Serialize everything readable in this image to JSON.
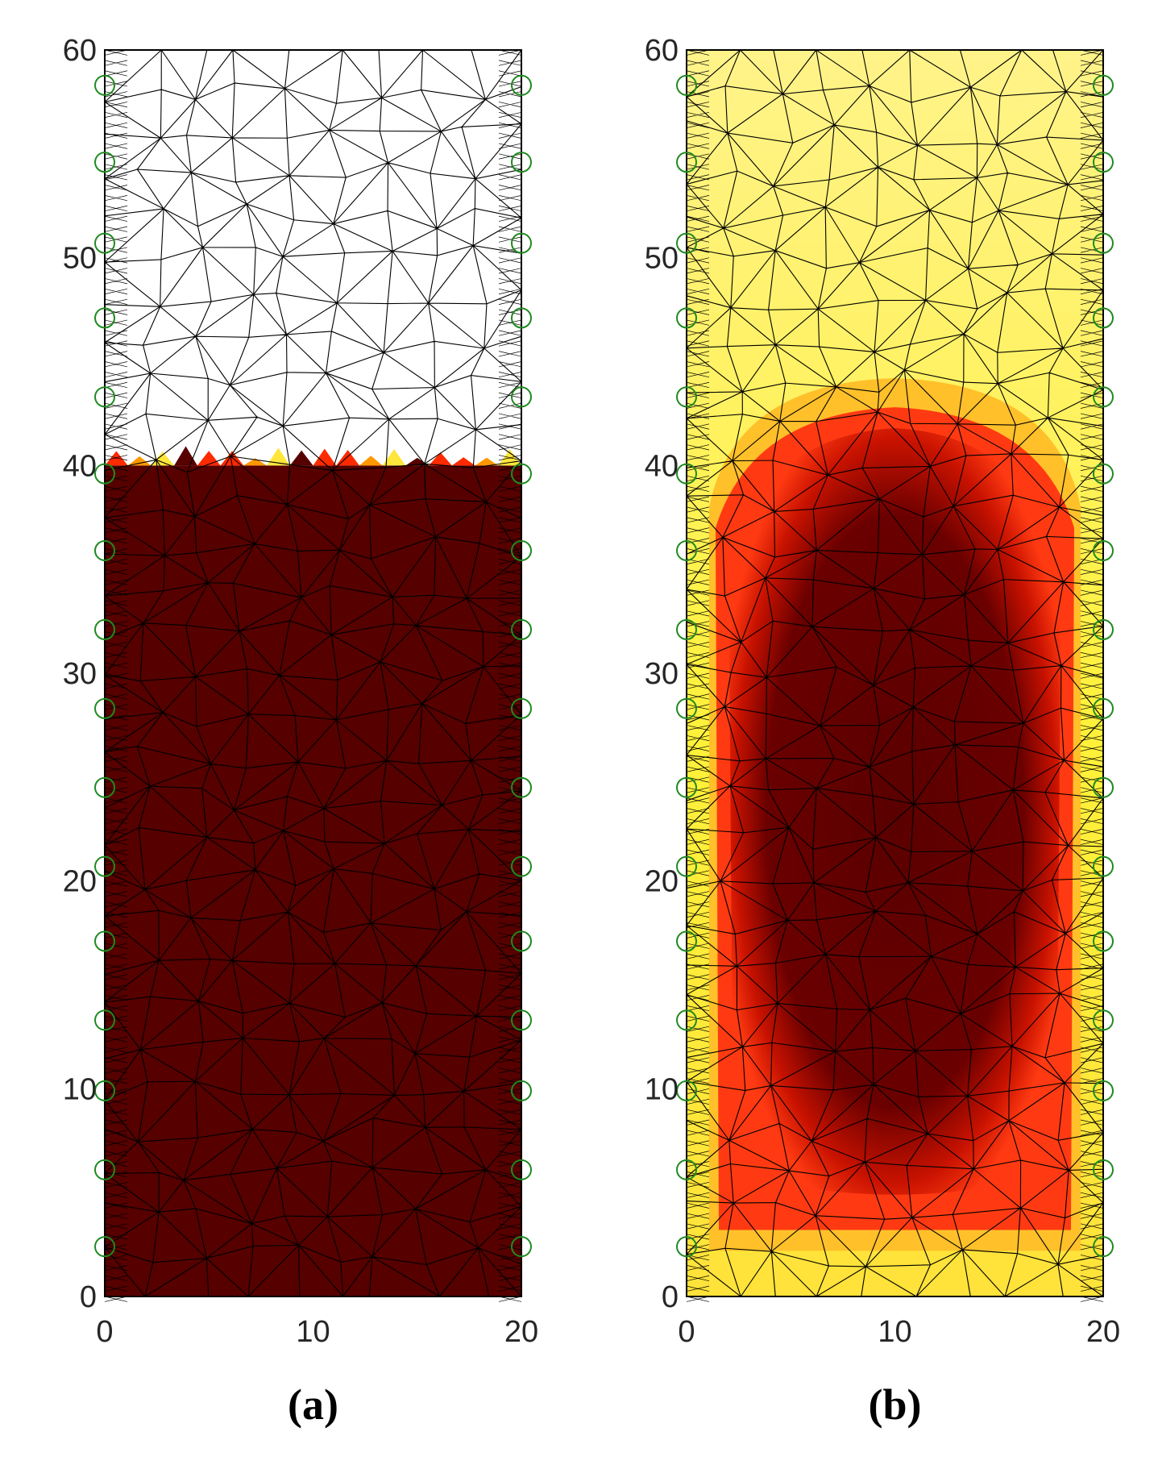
{
  "chart_data": [
    {
      "type": "heatmap",
      "panel_label": "(a)",
      "xlim": [
        0,
        20
      ],
      "ylim": [
        0,
        60
      ],
      "xticks": [
        "0",
        "10",
        "20"
      ],
      "yticks": [
        "0",
        "10",
        "20",
        "30",
        "40",
        "50",
        "60"
      ],
      "sensor_y": [
        2.4,
        6.1,
        9.9,
        13.3,
        17.1,
        20.7,
        24.5,
        28.3,
        32.1,
        35.9,
        39.6,
        43.3,
        47.1,
        50.7,
        54.6,
        58.3
      ],
      "fill_level": 40,
      "colors": {
        "background": "#ffffff",
        "filled": "#560000",
        "boundary_hot": "#ff2a00",
        "boundary_warm": "#ff9800",
        "boundary_light": "#ffe63a"
      }
    },
    {
      "type": "heatmap",
      "panel_label": "(b)",
      "xlim": [
        0,
        20
      ],
      "ylim": [
        0,
        60
      ],
      "xticks": [
        "0",
        "10",
        "20"
      ],
      "yticks": [
        "0",
        "10",
        "20",
        "30",
        "40",
        "50",
        "60"
      ],
      "sensor_y": [
        2.4,
        6.1,
        9.9,
        13.3,
        17.1,
        20.7,
        24.5,
        28.3,
        32.1,
        35.9,
        39.6,
        43.3,
        47.1,
        50.7,
        54.6,
        58.3
      ],
      "colors": {
        "background": "#fff23a",
        "outer": "#ffc02a",
        "middle": "#ff3a12",
        "core": "#5a0000",
        "core_edge": "#9b0b00"
      }
    }
  ]
}
